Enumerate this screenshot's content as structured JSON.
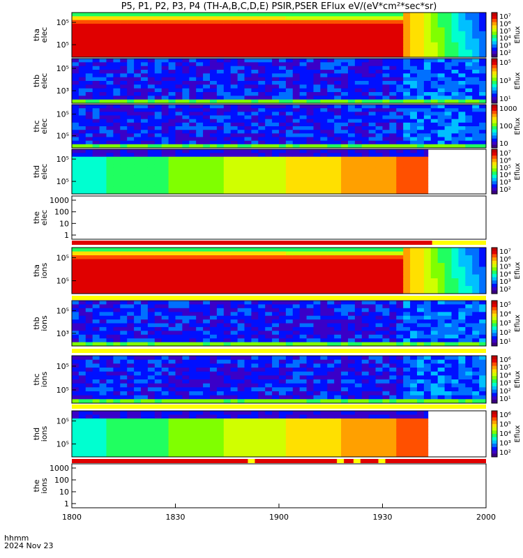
{
  "chart_data": {
    "type": "heatmap",
    "title": "P5, P1, P2, P3, P4 (TH-A,B,C,D,E) PSIR,PSER EFlux eV/(eV*cm²*sec*sr)",
    "x_axis": {
      "ticks": [
        "1800",
        "1830",
        "1900",
        "1930",
        "2000"
      ],
      "label": "hhmm",
      "date": "2024 Nov 23"
    },
    "colorbar_label": "Eflux",
    "panels": [
      {
        "id": "tha-elec",
        "label": [
          "tha",
          "elec"
        ],
        "y_ticks": [
          "10⁵",
          "10⁵"
        ],
        "colorbar_ticks": [
          "10⁷",
          "10⁶",
          "10⁵",
          "10⁴",
          "10³",
          "10²"
        ],
        "colormap": "sheath-hot"
      },
      {
        "id": "thb-elec",
        "label": [
          "thb",
          "elec"
        ],
        "y_ticks": [
          "10⁵",
          "10³"
        ],
        "colorbar_ticks": [
          "10⁵",
          "10³",
          "10¹"
        ],
        "colormap": "noise"
      },
      {
        "id": "thc-elec",
        "label": [
          "thc",
          "elec"
        ],
        "y_ticks": [
          "10⁵",
          "10⁵"
        ],
        "colorbar_ticks": [
          "1000",
          "100",
          "10"
        ],
        "colormap": "noise"
      },
      {
        "id": "thd-elec",
        "label": [
          "thd",
          "elec"
        ],
        "y_ticks": [
          "10⁵",
          "10⁵"
        ],
        "colorbar_ticks": [
          "10⁷",
          "10⁶",
          "10⁵",
          "10⁴",
          "10³",
          "10²"
        ],
        "colormap": "gradient"
      },
      {
        "id": "the-elec",
        "label": [
          "the",
          "elec"
        ],
        "y_ticks": [
          "1000",
          "100",
          "10",
          "1"
        ],
        "colorbar_ticks": [],
        "colormap": "empty"
      },
      {
        "id": "tha-ions",
        "label": [
          "tha",
          "ions"
        ],
        "y_ticks": [
          "10⁵",
          "10⁵"
        ],
        "colorbar_ticks": [
          "10⁷",
          "10⁶",
          "10⁵",
          "10⁴",
          "10³",
          "10²"
        ],
        "colormap": "sheath-hot"
      },
      {
        "id": "thb-ions",
        "label": [
          "thb",
          "ions"
        ],
        "y_ticks": [
          "10⁵",
          "10³"
        ],
        "colorbar_ticks": [
          "10⁵",
          "10⁴",
          "10³",
          "10²",
          "10¹"
        ],
        "colormap": "noise"
      },
      {
        "id": "thc-ions",
        "label": [
          "thc",
          "ions"
        ],
        "y_ticks": [
          "10⁵",
          "10⁵"
        ],
        "colorbar_ticks": [
          "10⁶",
          "10⁵",
          "10⁴",
          "10³",
          "10²",
          "10¹"
        ],
        "colormap": "noise"
      },
      {
        "id": "thd-ions",
        "label": [
          "thd",
          "ions"
        ],
        "y_ticks": [
          "10⁵",
          "10⁵"
        ],
        "colorbar_ticks": [
          "10⁶",
          "10⁵",
          "10⁴",
          "10³",
          "10²"
        ],
        "colormap": "gradient"
      },
      {
        "id": "the-ions",
        "label": [
          "the",
          "ions"
        ],
        "y_ticks": [
          "1000",
          "100",
          "10",
          "1"
        ],
        "colorbar_ticks": [],
        "colormap": "empty"
      }
    ]
  }
}
